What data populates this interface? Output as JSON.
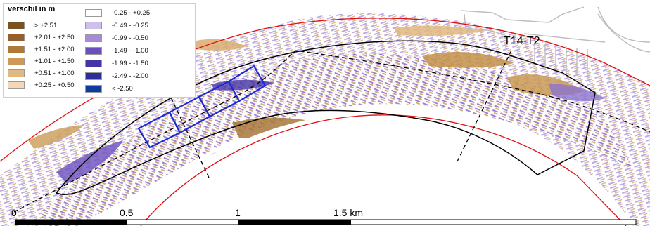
{
  "legend": {
    "title": "verschil in m",
    "positive": [
      {
        "label": "> +2.51",
        "color": "#7a5122"
      },
      {
        "label": "+2.01 - +2.50",
        "color": "#935f2c"
      },
      {
        "label": "+1.51 - +2.00",
        "color": "#b07837"
      },
      {
        "label": "+1.01 - +1.50",
        "color": "#cf9a55"
      },
      {
        "label": "+0.51 - +1.00",
        "color": "#e2b980"
      },
      {
        "label": "+0.25 - +0.50",
        "color": "#f2d9b6"
      }
    ],
    "negative": [
      {
        "label": "-0.25 - +0.25",
        "color": "#ffffff"
      },
      {
        "label": "-0.49 - -0.25",
        "color": "#cfc0ea"
      },
      {
        "label": "-0.99 - -0.50",
        "color": "#a98ad8"
      },
      {
        "label": "-1.49 - -1.00",
        "color": "#6a4fbf"
      },
      {
        "label": "-1.99 - -1.50",
        "color": "#4633a6"
      },
      {
        "label": "-2.49 - -2.00",
        "color": "#2c2f99"
      },
      {
        "label": "< -2.50",
        "color": "#0d3b9e"
      }
    ]
  },
  "map": {
    "section_label": "T14-T2",
    "scale_labels": [
      "0",
      "0.5",
      "1",
      "1.5 km"
    ],
    "colors": {
      "sediment": "#a8783a",
      "erosion": "#6a4fbf",
      "river_edge": "#e01010",
      "zone_outline": "#000000",
      "grid_boxes": "#1a2bd6"
    }
  }
}
